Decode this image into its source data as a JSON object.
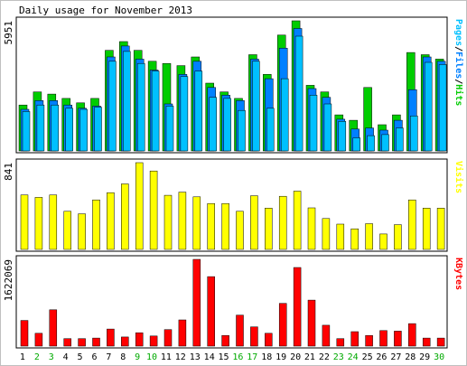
{
  "chart_data": {
    "type": "bar",
    "title": "Daily usage for November 2013",
    "categories": [
      "1",
      "2",
      "3",
      "4",
      "5",
      "6",
      "7",
      "8",
      "9",
      "10",
      "11",
      "12",
      "13",
      "14",
      "15",
      "16",
      "17",
      "18",
      "19",
      "20",
      "21",
      "22",
      "23",
      "24",
      "25",
      "26",
      "27",
      "28",
      "29",
      "30"
    ],
    "weekend_days": [
      "2",
      "3",
      "9",
      "10",
      "16",
      "17",
      "23",
      "24",
      "30"
    ],
    "colors": {
      "hits": "#00cc00",
      "files": "#0080ff",
      "pages": "#00c0ff",
      "visits": "#ffff00",
      "kbytes": "#ff0000",
      "weekend_label": "#00aa00",
      "weekday_label": "#000000",
      "panel_border": "#000000",
      "frame_bg": "#c0c0c0"
    },
    "panels": [
      {
        "id": "hits-panel",
        "ylabel": "5951",
        "legend": [
          {
            "text": "Pages",
            "color": "#00c0ff"
          },
          {
            "text": "/",
            "color": "#000000"
          },
          {
            "text": "Files",
            "color": "#0080ff"
          },
          {
            "text": "/",
            "color": "#000000"
          },
          {
            "text": "Hits",
            "color": "#00cc00"
          }
        ],
        "ymax": 5951,
        "series": [
          {
            "name": "Hits",
            "color": "#00cc00",
            "values": [
              2100,
              2700,
              2600,
              2400,
              2200,
              2400,
              4600,
              5000,
              4600,
              4100,
              4000,
              3900,
              4300,
              3100,
              2700,
              2400,
              4400,
              3500,
              5300,
              5951,
              3000,
              2700,
              1650,
              1400,
              2900,
              1200,
              1650,
              4500,
              4400,
              4200
            ]
          },
          {
            "name": "Files",
            "color": "#0080ff",
            "values": [
              1900,
              2300,
              2300,
              2100,
              1950,
              2050,
              4300,
              4800,
              4200,
              3700,
              2150,
              3500,
              4100,
              2900,
              2550,
              2300,
              4200,
              3300,
              4700,
              5600,
              2850,
              2450,
              1450,
              1000,
              1050,
              950,
              1400,
              2800,
              4300,
              4100
            ]
          },
          {
            "name": "Pages",
            "color": "#00c0ff",
            "values": [
              1800,
              2100,
              2100,
              1950,
              1900,
              2000,
              4100,
              4550,
              4000,
              3650,
              2050,
              3400,
              3650,
              2450,
              2400,
              1850,
              4100,
              1950,
              3300,
              5250,
              2550,
              2150,
              1350,
              600,
              700,
              750,
              1050,
              1600,
              4050,
              3950
            ]
          }
        ]
      },
      {
        "id": "visits-panel",
        "ylabel": "841",
        "legend": [
          {
            "text": "Visits",
            "color": "#ffff00"
          }
        ],
        "ymax": 841,
        "series": [
          {
            "name": "Visits",
            "color": "#ffff00",
            "values": [
              528,
              505,
              528,
              370,
              345,
              480,
              550,
              635,
              841,
              760,
              525,
              555,
              510,
              445,
              445,
              370,
              520,
              400,
              515,
              565,
              403,
              300,
              245,
              200,
              250,
              150,
              240,
              480,
              400,
              400
            ]
          }
        ]
      },
      {
        "id": "kbytes-panel",
        "ylabel": "1622069",
        "legend": [
          {
            "text": "KBytes",
            "color": "#ff0000"
          }
        ],
        "ymax": 1622069,
        "series": [
          {
            "name": "KBytes",
            "color": "#ff0000",
            "values": [
              480000,
              240000,
              680000,
              140000,
              140000,
              150000,
              320000,
              170000,
              250000,
              190000,
              310000,
              490000,
              1622069,
              1300000,
              200000,
              580000,
              360000,
              240000,
              800000,
              1470000,
              860000,
              390000,
              140000,
              270000,
              200000,
              290000,
              280000,
              420000,
              150000,
              150000
            ]
          }
        ]
      }
    ]
  }
}
